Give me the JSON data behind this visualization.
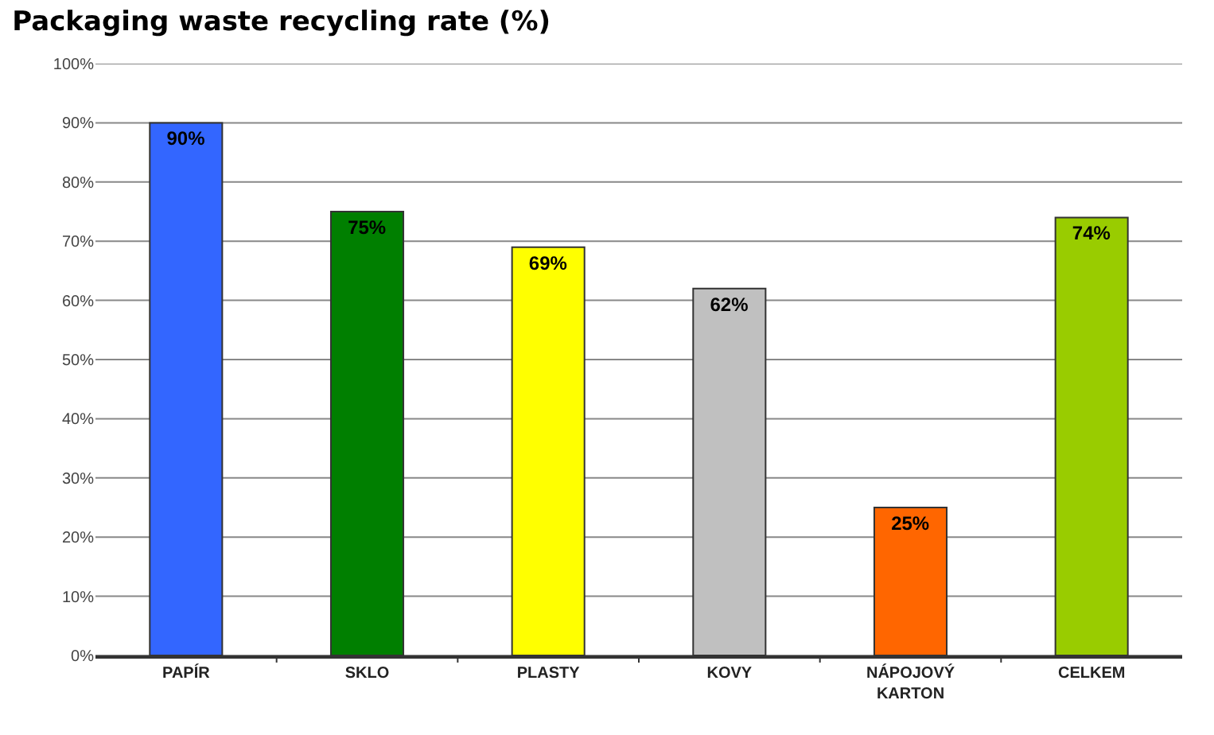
{
  "chart_data": {
    "type": "bar",
    "title": "Packaging waste recycling rate (%)",
    "categories": [
      "PAPÍR",
      "SKLO",
      "PLASTY",
      "KOVY",
      "NÁPOJOVÝ KARTON",
      "CELKEM"
    ],
    "values": [
      90,
      75,
      69,
      62,
      25,
      74
    ],
    "colors": [
      "#3366ff",
      "#007f00",
      "#ffff00",
      "#c0c0c0",
      "#ff6600",
      "#99cc00"
    ],
    "value_labels": [
      "90%",
      "75%",
      "69%",
      "62%",
      "25%",
      "74%"
    ],
    "ylim": [
      0,
      100
    ],
    "yticks": [
      {
        "value": 0,
        "label": "0%"
      },
      {
        "value": 10,
        "label": "10%"
      },
      {
        "value": 20,
        "label": "20%"
      },
      {
        "value": 30,
        "label": "30%"
      },
      {
        "value": 40,
        "label": "40%"
      },
      {
        "value": 50,
        "label": "50%"
      },
      {
        "value": 60,
        "label": "60%"
      },
      {
        "value": 70,
        "label": "70%"
      },
      {
        "value": 80,
        "label": "80%"
      },
      {
        "value": 90,
        "label": "90%"
      },
      {
        "value": 100,
        "label": "100%"
      }
    ],
    "grid": "y",
    "legend": false
  }
}
